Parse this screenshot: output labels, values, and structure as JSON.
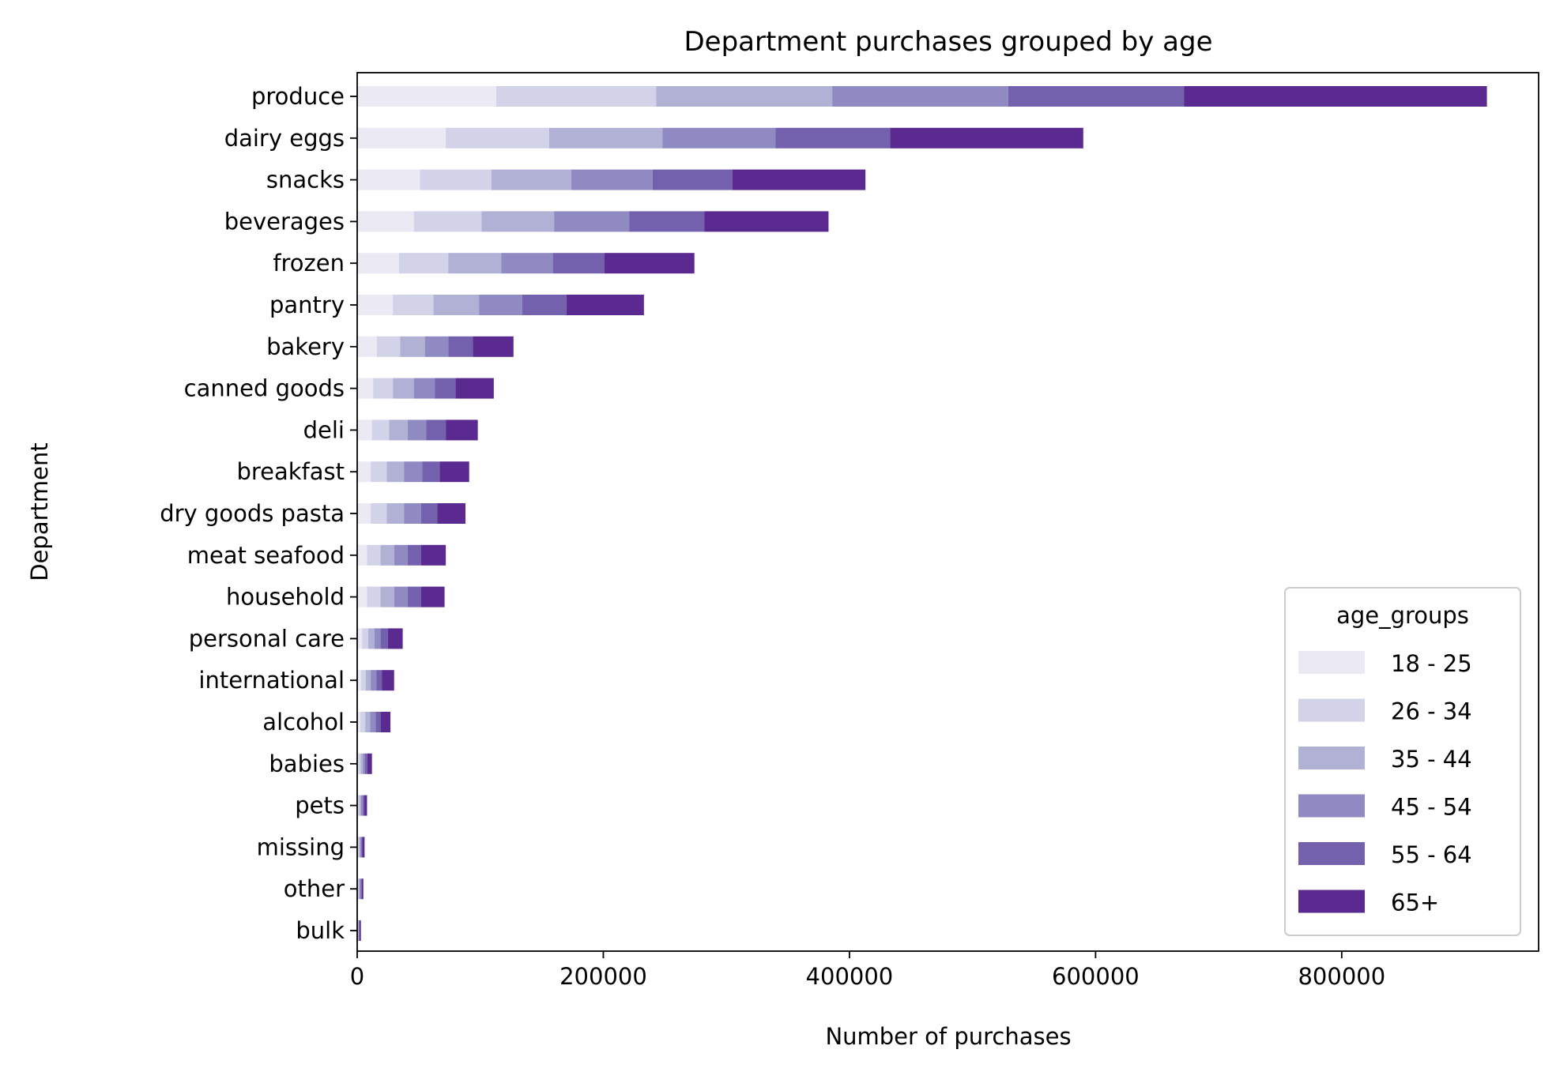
{
  "chart_data": {
    "type": "bar",
    "orientation": "horizontal",
    "stacked": true,
    "title": "Department purchases grouped by age",
    "xlabel": "Number of purchases",
    "ylabel": "Department",
    "xlim": [
      0,
      960000
    ],
    "xticks": [
      0,
      200000,
      400000,
      600000,
      800000
    ],
    "xtick_labels": [
      "0",
      "200000",
      "400000",
      "600000",
      "800000"
    ],
    "grid": false,
    "legend": {
      "title": "age_groups",
      "placement": "lower-right"
    },
    "categories": [
      "produce",
      "dairy eggs",
      "snacks",
      "beverages",
      "frozen",
      "pantry",
      "bakery",
      "canned goods",
      "deli",
      "breakfast",
      "dry goods pasta",
      "meat seafood",
      "household",
      "personal care",
      "international",
      "alcohol",
      "babies",
      "pets",
      "missing",
      "other",
      "bulk"
    ],
    "series": [
      {
        "name": "18 - 25",
        "color": "#ebe9f3",
        "values": [
          113000,
          72000,
          51000,
          46000,
          34000,
          29000,
          16000,
          13000,
          12000,
          11000,
          11000,
          8000,
          8000,
          4000,
          3000,
          2500,
          1000,
          700,
          600,
          500,
          300
        ]
      },
      {
        "name": "26 - 34",
        "color": "#d2d2e8",
        "values": [
          130000,
          84000,
          58000,
          55000,
          40000,
          33000,
          19000,
          16000,
          14000,
          13000,
          13000,
          11000,
          11000,
          5000,
          4000,
          4000,
          1800,
          1200,
          900,
          800,
          400
        ]
      },
      {
        "name": "35 - 44",
        "color": "#b1b1d6",
        "values": [
          143000,
          92000,
          65000,
          59000,
          43000,
          37000,
          20000,
          17000,
          15000,
          14000,
          14000,
          11000,
          11000,
          5000,
          4000,
          4000,
          1800,
          1200,
          900,
          800,
          400
        ]
      },
      {
        "name": "45 - 54",
        "color": "#8f8ac2",
        "values": [
          143000,
          92000,
          66000,
          61000,
          42000,
          35000,
          19000,
          17000,
          15000,
          15000,
          14000,
          11000,
          11000,
          5000,
          4500,
          4500,
          1800,
          1300,
          900,
          800,
          400
        ]
      },
      {
        "name": "55 - 64",
        "color": "#7461ae",
        "values": [
          143000,
          93000,
          65000,
          61000,
          42000,
          36000,
          20000,
          17000,
          16000,
          14000,
          13000,
          11000,
          11000,
          6000,
          4500,
          4000,
          1800,
          1300,
          900,
          800,
          400
        ]
      },
      {
        "name": "65+",
        "color": "#5a2a90",
        "values": [
          246000,
          157000,
          108000,
          101000,
          73000,
          63000,
          33000,
          31000,
          26000,
          24000,
          23000,
          20000,
          19000,
          12000,
          10000,
          8000,
          3800,
          2300,
          1800,
          1300,
          1100
        ]
      }
    ]
  }
}
